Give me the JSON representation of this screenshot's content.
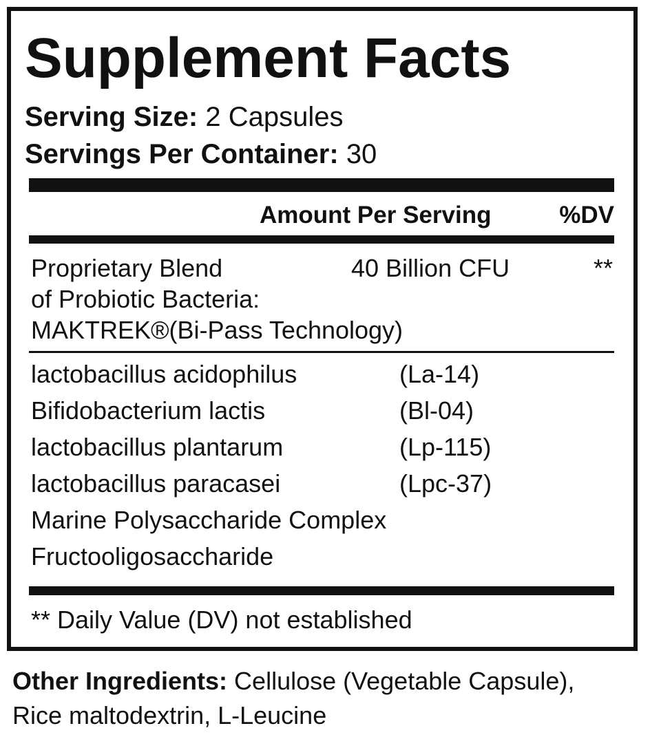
{
  "title": "Supplement Facts",
  "serving_size": {
    "label": "Serving Size:",
    "value": "2 Capsules"
  },
  "servings_per_container": {
    "label": "Servings Per Container:",
    "value": "30"
  },
  "header": {
    "amount": "Amount Per Serving",
    "dv": "%DV"
  },
  "blend": {
    "lines": [
      "Proprietary Blend",
      "of Probiotic Bacteria:",
      "MAKTREK®(Bi-Pass Technology)"
    ],
    "amount": "40 Billion CFU",
    "dv": "**"
  },
  "ingredients": [
    {
      "name": "lactobacillus acidophilus",
      "code": "(La-14)"
    },
    {
      "name": "Bifidobacterium lactis",
      "code": "(Bl-04)"
    },
    {
      "name": "lactobacillus plantarum",
      "code": "(Lp-115)"
    },
    {
      "name": "lactobacillus paracasei",
      "code": "(Lpc-37)"
    },
    {
      "name": "Marine Polysaccharide Complex"
    },
    {
      "name": "Fructooligosaccharide"
    }
  ],
  "footnote": "** Daily Value (DV) not established",
  "other_ingredients": {
    "label": "Other Ingredients:",
    "lines": [
      "Cellulose (Vegetable Capsule),",
      "Rice maltodextrin, L-Leucine"
    ]
  }
}
